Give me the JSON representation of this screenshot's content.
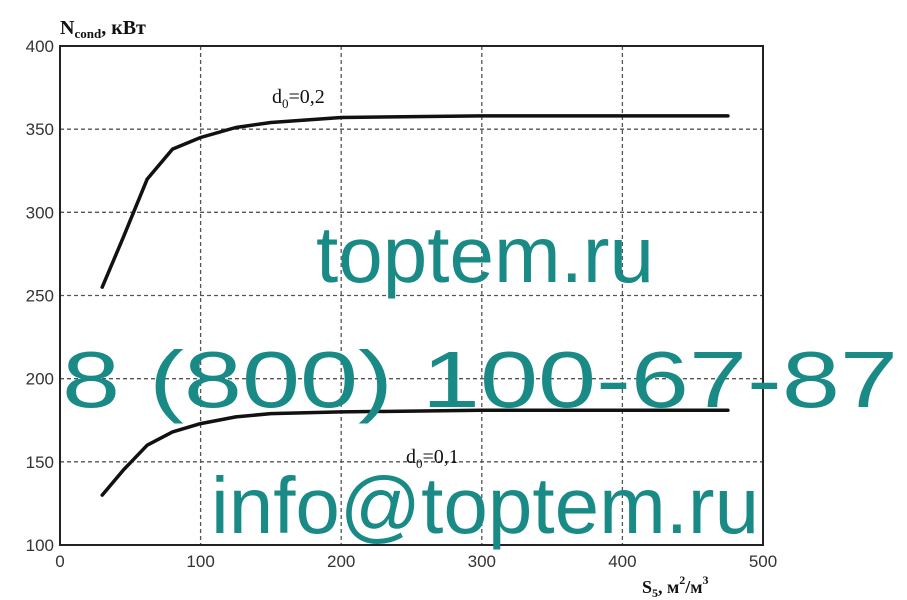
{
  "chart_data": {
    "type": "line",
    "title": "",
    "ylabel": "N",
    "ylabel_sub": "cond",
    "ylabel_unit": ", кВт",
    "xlabel": "S",
    "xlabel_sub": "5",
    "xlabel_unit": ", м",
    "xlabel_sup1": "2",
    "xlabel_mid": "/м",
    "xlabel_sup2": "3",
    "xlim": [
      0,
      500
    ],
    "ylim": [
      100,
      400
    ],
    "xticks": [
      0,
      100,
      200,
      300,
      400,
      500
    ],
    "yticks": [
      100,
      150,
      200,
      250,
      300,
      350,
      400
    ],
    "grid": true,
    "series": [
      {
        "name": "d",
        "name_sub": "0",
        "name_rest": "=0,2",
        "x": [
          30,
          45,
          62,
          80,
          100,
          125,
          150,
          200,
          300,
          400,
          475
        ],
        "values": [
          255,
          285,
          320,
          338,
          345,
          351,
          354,
          357,
          358,
          358,
          358
        ]
      },
      {
        "name": "d",
        "name_sub": "0",
        "name_rest": "=0,1",
        "x": [
          30,
          45,
          62,
          80,
          100,
          125,
          150,
          200,
          300,
          400,
          475
        ],
        "values": [
          130,
          145,
          160,
          168,
          173,
          177,
          179,
          180,
          181,
          181,
          181
        ]
      }
    ]
  },
  "watermark": {
    "line1": "toptem.ru",
    "line2": "8 (800) 100-67-87",
    "line3": "info@toptem.ru",
    "color": "#1a8a86"
  }
}
